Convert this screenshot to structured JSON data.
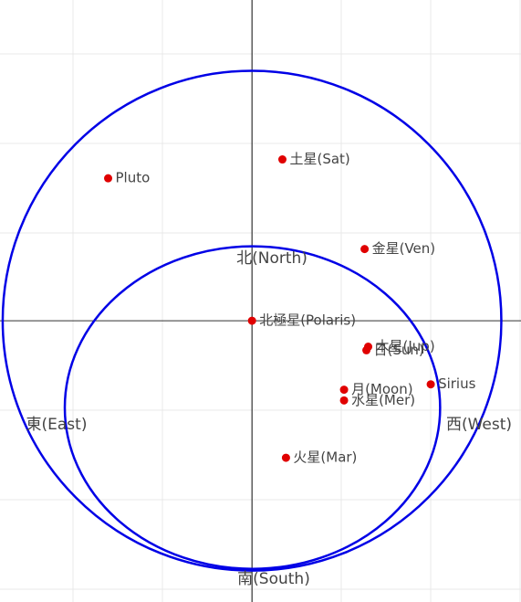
{
  "chart_data": {
    "type": "scatter",
    "labels": [
      "Pluto",
      "土星(Sat)",
      "金星(Ven)",
      "北極星(Polaris)",
      "木星(Jup)",
      "日(Sun)",
      "月(Moon)",
      "水星(Mer)",
      "Sirius",
      "火星(Mar)"
    ],
    "x": [
      -1.61,
      0.34,
      1.26,
      0,
      1.3,
      1.28,
      1.03,
      1.03,
      2.0,
      0.38
    ],
    "y": [
      1.59,
      1.8,
      0.8,
      0,
      -0.29,
      -0.33,
      -0.77,
      -0.89,
      -0.71,
      -1.53
    ],
    "color": "#e00000",
    "circles": [
      {
        "cx": 0,
        "cy": 0,
        "rx": 2.79,
        "ry": 2.79
      },
      {
        "cx": 0.005,
        "cy": -0.97,
        "rx": 2.1,
        "ry": 1.8
      }
    ],
    "circle_color": "#0000e6",
    "annotations": [
      "北(North)",
      "東(East)",
      "西(West)",
      "南(South)"
    ],
    "xlim": [
      -2.82,
      3.01
    ],
    "ylim": [
      -3.14,
      3.58
    ]
  }
}
